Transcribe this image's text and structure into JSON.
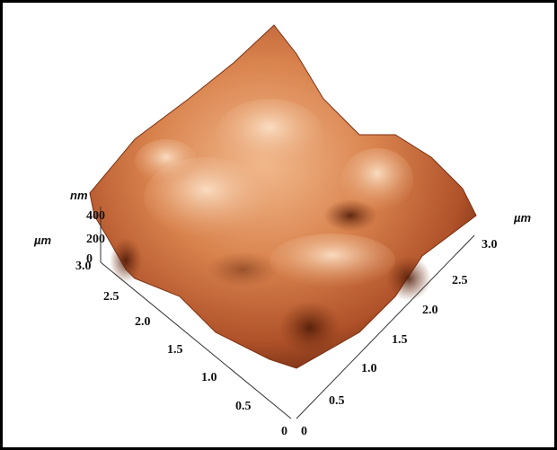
{
  "z_axis": {
    "unit": "nm",
    "ticks": [
      "400",
      "200",
      "0"
    ]
  },
  "y_axis": {
    "unit": "µm",
    "ticks": [
      "3.0",
      "2.5",
      "2.0",
      "1.5",
      "1.0",
      "0.5",
      "0"
    ]
  },
  "x_axis": {
    "unit": "µm",
    "ticks": [
      "0",
      "0.5",
      "1.0",
      "1.5",
      "2.0",
      "2.5",
      "3.0"
    ]
  }
}
